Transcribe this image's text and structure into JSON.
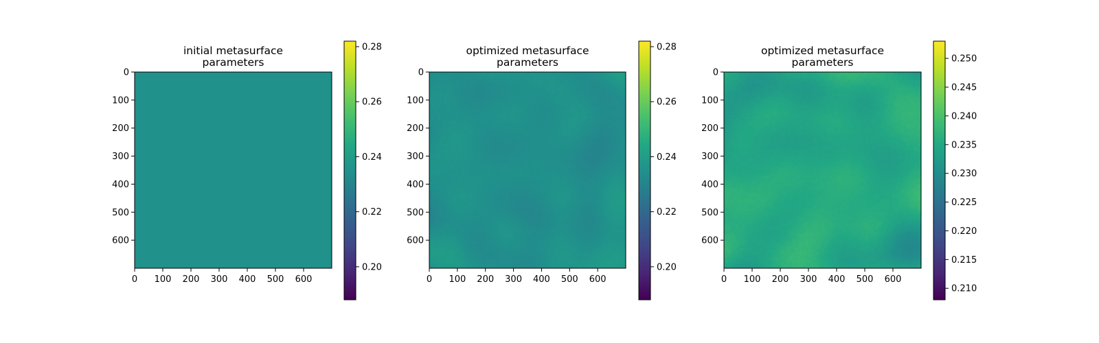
{
  "chart_data": [
    {
      "type": "heatmap",
      "title_lines": [
        "initial metasurface",
        "parameters"
      ],
      "xticks": [
        0,
        100,
        200,
        300,
        400,
        500,
        600
      ],
      "yticks": [
        0,
        100,
        200,
        300,
        400,
        500,
        600
      ],
      "xlim": [
        0,
        700
      ],
      "ylim": [
        700,
        0
      ],
      "colormap": "viridis",
      "colorbar": {
        "range": [
          0.188,
          0.282
        ],
        "ticks": [
          "0.20",
          "0.22",
          "0.24",
          "0.26",
          "0.28"
        ],
        "tick_values": [
          0.2,
          0.22,
          0.24,
          0.26,
          0.28
        ]
      },
      "field": {
        "base_value": 0.235,
        "variation": 0.0
      },
      "grid": false
    },
    {
      "type": "heatmap",
      "title_lines": [
        "optimized metasurface",
        "parameters"
      ],
      "xticks": [
        0,
        100,
        200,
        300,
        400,
        500,
        600
      ],
      "yticks": [
        0,
        100,
        200,
        300,
        400,
        500,
        600
      ],
      "xlim": [
        0,
        700
      ],
      "ylim": [
        700,
        0
      ],
      "colormap": "viridis",
      "colorbar": {
        "range": [
          0.188,
          0.282
        ],
        "ticks": [
          "0.20",
          "0.22",
          "0.24",
          "0.26",
          "0.28"
        ],
        "tick_values": [
          0.2,
          0.22,
          0.24,
          0.26,
          0.28
        ]
      },
      "field": {
        "base_value": 0.235,
        "variation": 0.006
      },
      "grid": false
    },
    {
      "type": "heatmap",
      "title_lines": [
        "optimized metasurface",
        "parameters"
      ],
      "xticks": [
        0,
        100,
        200,
        300,
        400,
        500,
        600
      ],
      "yticks": [
        0,
        100,
        200,
        300,
        400,
        500,
        600
      ],
      "xlim": [
        0,
        700
      ],
      "ylim": [
        700,
        0
      ],
      "colormap": "viridis",
      "colorbar": {
        "range": [
          0.208,
          0.253
        ],
        "ticks": [
          "0.210",
          "0.215",
          "0.220",
          "0.225",
          "0.230",
          "0.235",
          "0.240",
          "0.245",
          "0.250"
        ],
        "tick_values": [
          0.21,
          0.215,
          0.22,
          0.225,
          0.23,
          0.235,
          0.24,
          0.245,
          0.25
        ]
      },
      "field": {
        "base_value": 0.235,
        "variation": 0.006
      },
      "grid": false
    }
  ]
}
